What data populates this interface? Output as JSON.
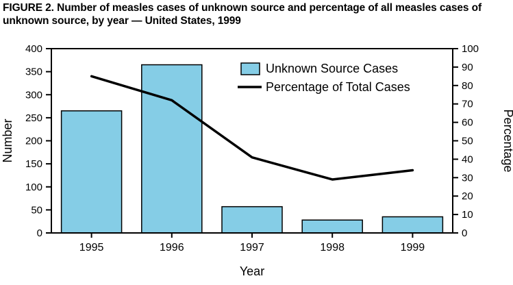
{
  "figure": {
    "title": "FIGURE 2. Number of measles cases of unknown source and percentage of all measles cases of unknown source, by year — United States, 1999"
  },
  "chart_data": {
    "type": "bar+line",
    "title": "FIGURE 2. Number of measles cases of unknown source and percentage of all measles cases of unknown source, by year — United States, 1999",
    "categories": [
      "1995",
      "1996",
      "1997",
      "1998",
      "1999"
    ],
    "series": [
      {
        "name": "Unknown Source Cases",
        "type": "bar",
        "axis": "left",
        "values": [
          265,
          365,
          57,
          28,
          35
        ],
        "color": "#85CDE6"
      },
      {
        "name": "Percentage of Total Cases",
        "type": "line",
        "axis": "right",
        "values": [
          85,
          72,
          41,
          29,
          34
        ],
        "color": "#000000"
      }
    ],
    "xlabel": "Year",
    "left_axis": {
      "label": "Number",
      "min": 0,
      "max": 400,
      "step": 50
    },
    "right_axis": {
      "label": "Percentage",
      "min": 0,
      "max": 100,
      "step": 10
    },
    "legend_position": "top-right-inside",
    "grid": false,
    "colors": {
      "bar_fill": "#85CDE6",
      "line": "#000000",
      "axis": "#000000"
    }
  }
}
